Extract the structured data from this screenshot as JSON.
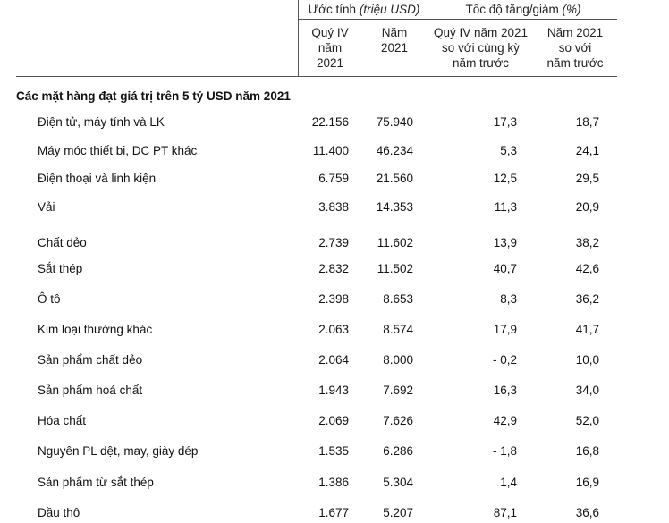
{
  "table": {
    "group_headers": [
      {
        "text": "Ước tính",
        "note": "(triệu USD)"
      },
      {
        "text": "Tốc độ tăng/giảm",
        "note": "(%)"
      }
    ],
    "columns": [
      [
        "Quý IV",
        "năm",
        "2021"
      ],
      [
        "Năm",
        "2021"
      ],
      [
        "Quý IV năm 2021",
        "so với cùng kỳ",
        "năm trước"
      ],
      [
        "Năm 2021",
        "so với",
        "năm trước"
      ]
    ],
    "section_title": "Các mặt hàng đạt giá trị trên 5 tỷ USD năm 2021",
    "rows": [
      [
        "Điện tử, máy tính và LK",
        "22.156",
        "75.940",
        "17,3",
        "18,7"
      ],
      [
        "Máy móc thiết bị, DC PT khác",
        "11.400",
        "46.234",
        "5,3",
        "24,1"
      ],
      [
        "Điện thoại và linh kiện",
        "6.759",
        "21.560",
        "12,5",
        "29,5"
      ],
      [
        "Vải",
        "3.838",
        "14.353",
        "11,3",
        "20,9"
      ],
      [
        "Chất dẻo",
        "2.739",
        "11.602",
        "13,9",
        "38,2"
      ],
      [
        "Sắt thép",
        "2.832",
        "11.502",
        "40,7",
        "42,6"
      ],
      [
        "Ô tô",
        "2.398",
        "8.653",
        "8,3",
        "36,2"
      ],
      [
        "Kim loại thường khác",
        "2.063",
        "8.574",
        "17,9",
        "41,7"
      ],
      [
        "Sản phẩm chất dẻo",
        "2.064",
        "8.000",
        "- 0,2",
        "10,0"
      ],
      [
        "Sản phẩm hoá chất",
        "1.943",
        "7.692",
        "16,3",
        "34,0"
      ],
      [
        "Hóa chất",
        "2.069",
        "7.626",
        "42,9",
        "52,0"
      ],
      [
        "Nguyên PL dệt, may, giày dép",
        "1.535",
        "6.286",
        "- 1,8",
        "16,8"
      ],
      [
        "Sản phẩm từ sắt thép",
        "1.386",
        "5.304",
        "1,4",
        "16,9"
      ],
      [
        "Dầu thô",
        "1.677",
        "5.207",
        "87,1",
        "36,6"
      ]
    ]
  }
}
